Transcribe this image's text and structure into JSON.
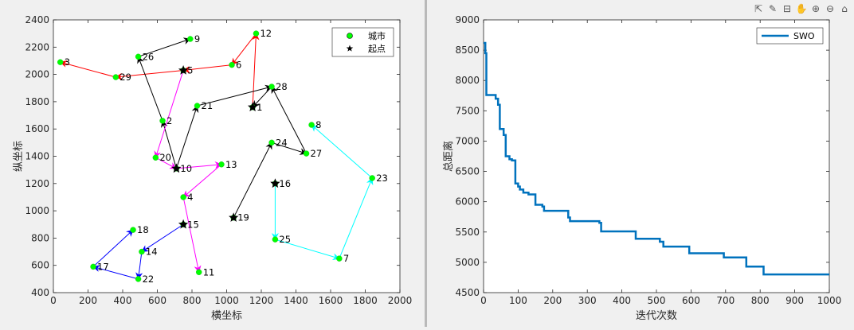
{
  "chart_data": [
    {
      "type": "scatter",
      "title": "",
      "xlabel": "横坐标",
      "ylabel": "纵坐标",
      "xlim": [
        0,
        2000
      ],
      "ylim": [
        400,
        2400
      ],
      "xticks": [
        0,
        200,
        400,
        600,
        800,
        1000,
        1200,
        1400,
        1600,
        1800,
        2000
      ],
      "yticks": [
        400,
        600,
        800,
        1000,
        1200,
        1400,
        1600,
        1800,
        2000,
        2200,
        2400
      ],
      "legend": {
        "placement": "top-right",
        "entries": [
          "城市",
          "起点"
        ]
      },
      "cities": [
        {
          "id": "1",
          "x": 1150,
          "y": 1760,
          "start": true
        },
        {
          "id": "2",
          "x": 630,
          "y": 1660
        },
        {
          "id": "3",
          "x": 40,
          "y": 2090
        },
        {
          "id": "4",
          "x": 750,
          "y": 1100
        },
        {
          "id": "5",
          "x": 750,
          "y": 2030,
          "start": true
        },
        {
          "id": "6",
          "x": 1030,
          "y": 2070
        },
        {
          "id": "7",
          "x": 1650,
          "y": 650
        },
        {
          "id": "8",
          "x": 1490,
          "y": 1630
        },
        {
          "id": "9",
          "x": 790,
          "y": 2260
        },
        {
          "id": "10",
          "x": 710,
          "y": 1310,
          "start": true
        },
        {
          "id": "11",
          "x": 840,
          "y": 550
        },
        {
          "id": "12",
          "x": 1170,
          "y": 2300
        },
        {
          "id": "13",
          "x": 970,
          "y": 1340
        },
        {
          "id": "14",
          "x": 510,
          "y": 700
        },
        {
          "id": "15",
          "x": 750,
          "y": 900,
          "start": true
        },
        {
          "id": "16",
          "x": 1280,
          "y": 1200,
          "start": true
        },
        {
          "id": "17",
          "x": 230,
          "y": 590
        },
        {
          "id": "18",
          "x": 460,
          "y": 860
        },
        {
          "id": "19",
          "x": 1040,
          "y": 950,
          "start": true
        },
        {
          "id": "20",
          "x": 590,
          "y": 1390
        },
        {
          "id": "21",
          "x": 830,
          "y": 1770
        },
        {
          "id": "22",
          "x": 490,
          "y": 500
        },
        {
          "id": "23",
          "x": 1840,
          "y": 1240
        },
        {
          "id": "24",
          "x": 1260,
          "y": 1500
        },
        {
          "id": "25",
          "x": 1280,
          "y": 790
        },
        {
          "id": "26",
          "x": 490,
          "y": 2130
        },
        {
          "id": "27",
          "x": 1460,
          "y": 1420
        },
        {
          "id": "28",
          "x": 1260,
          "y": 1910
        },
        {
          "id": "29",
          "x": 360,
          "y": 1980
        }
      ],
      "routes": [
        {
          "color": "#ff0000",
          "path": [
            "1",
            "12",
            "6",
            "5",
            "29",
            "3"
          ]
        },
        {
          "color": "#000000",
          "path": [
            "10",
            "2",
            "26",
            "9"
          ]
        },
        {
          "color": "#000000",
          "path": [
            "10",
            "21",
            "28",
            "1"
          ]
        },
        {
          "color": "#000000",
          "path": [
            "19",
            "24",
            "27",
            "28"
          ]
        },
        {
          "color": "#ff00ff",
          "path": [
            "5",
            "20",
            "10",
            "13",
            "4",
            "11"
          ]
        },
        {
          "color": "#00ffff",
          "path": [
            "16",
            "25",
            "7",
            "23",
            "8"
          ]
        },
        {
          "color": "#0000ff",
          "path": [
            "15",
            "14",
            "22",
            "17",
            "18"
          ]
        }
      ]
    },
    {
      "type": "line",
      "title": "",
      "xlabel": "迭代次数",
      "ylabel": "总距离",
      "xlim": [
        0,
        1000
      ],
      "ylim": [
        4500,
        9000
      ],
      "xticks": [
        0,
        100,
        200,
        300,
        400,
        500,
        600,
        700,
        800,
        900,
        1000
      ],
      "yticks": [
        4500,
        5000,
        5500,
        6000,
        6500,
        7000,
        7500,
        8000,
        8500,
        9000
      ],
      "legend": {
        "placement": "top-right",
        "entries": [
          "SWO"
        ]
      },
      "series": [
        {
          "name": "SWO",
          "color": "#0072bd",
          "steps": [
            [
              0,
              8620
            ],
            [
              5,
              8450
            ],
            [
              8,
              7760
            ],
            [
              30,
              7760
            ],
            [
              35,
              7700
            ],
            [
              42,
              7600
            ],
            [
              47,
              7200
            ],
            [
              58,
              7100
            ],
            [
              64,
              6750
            ],
            [
              75,
              6700
            ],
            [
              82,
              6680
            ],
            [
              92,
              6300
            ],
            [
              100,
              6250
            ],
            [
              105,
              6200
            ],
            [
              115,
              6150
            ],
            [
              130,
              6120
            ],
            [
              150,
              5950
            ],
            [
              170,
              5920
            ],
            [
              175,
              5850
            ],
            [
              245,
              5740
            ],
            [
              250,
              5680
            ],
            [
              335,
              5650
            ],
            [
              340,
              5510
            ],
            [
              440,
              5390
            ],
            [
              510,
              5340
            ],
            [
              520,
              5260
            ],
            [
              595,
              5150
            ],
            [
              695,
              5080
            ],
            [
              760,
              4930
            ],
            [
              810,
              4800
            ],
            [
              1000,
              4800
            ]
          ]
        }
      ]
    }
  ],
  "toolbar": {
    "icons": [
      "export-icon",
      "brush-icon",
      "datatip-icon",
      "pan-icon",
      "zoom-in-icon",
      "zoom-out-icon",
      "home-icon"
    ]
  }
}
